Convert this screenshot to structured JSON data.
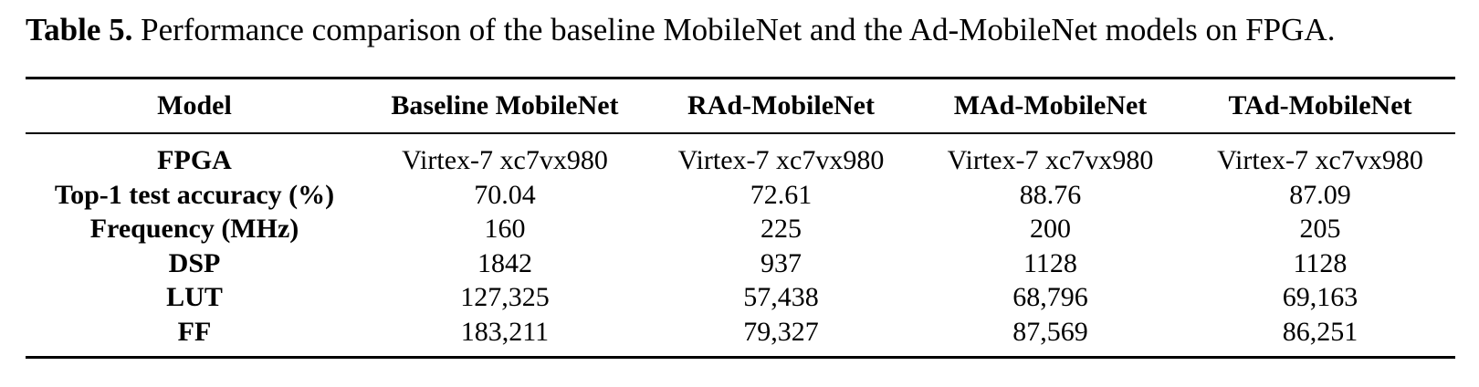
{
  "caption": {
    "label": "Table 5.",
    "text": " Performance comparison of the baseline MobileNet and the Ad-MobileNet models on FPGA."
  },
  "table": {
    "headers": [
      "Model",
      "Baseline MobileNet",
      "RAd-MobileNet",
      "MAd-MobileNet",
      "TAd-MobileNet"
    ],
    "rows": [
      [
        "FPGA",
        "Virtex-7 xc7vx980",
        "Virtex-7 xc7vx980",
        "Virtex-7 xc7vx980",
        "Virtex-7 xc7vx980"
      ],
      [
        "Top-1 test accuracy (%)",
        "70.04",
        "72.61",
        "88.76",
        "87.09"
      ],
      [
        "Frequency (MHz)",
        "160",
        "225",
        "200",
        "205"
      ],
      [
        "DSP",
        "1842",
        "937",
        "1128",
        "1128"
      ],
      [
        "LUT",
        "127,325",
        "57,438",
        "68,796",
        "69,163"
      ],
      [
        "FF",
        "183,211",
        "79,327",
        "87,569",
        "86,251"
      ]
    ]
  }
}
